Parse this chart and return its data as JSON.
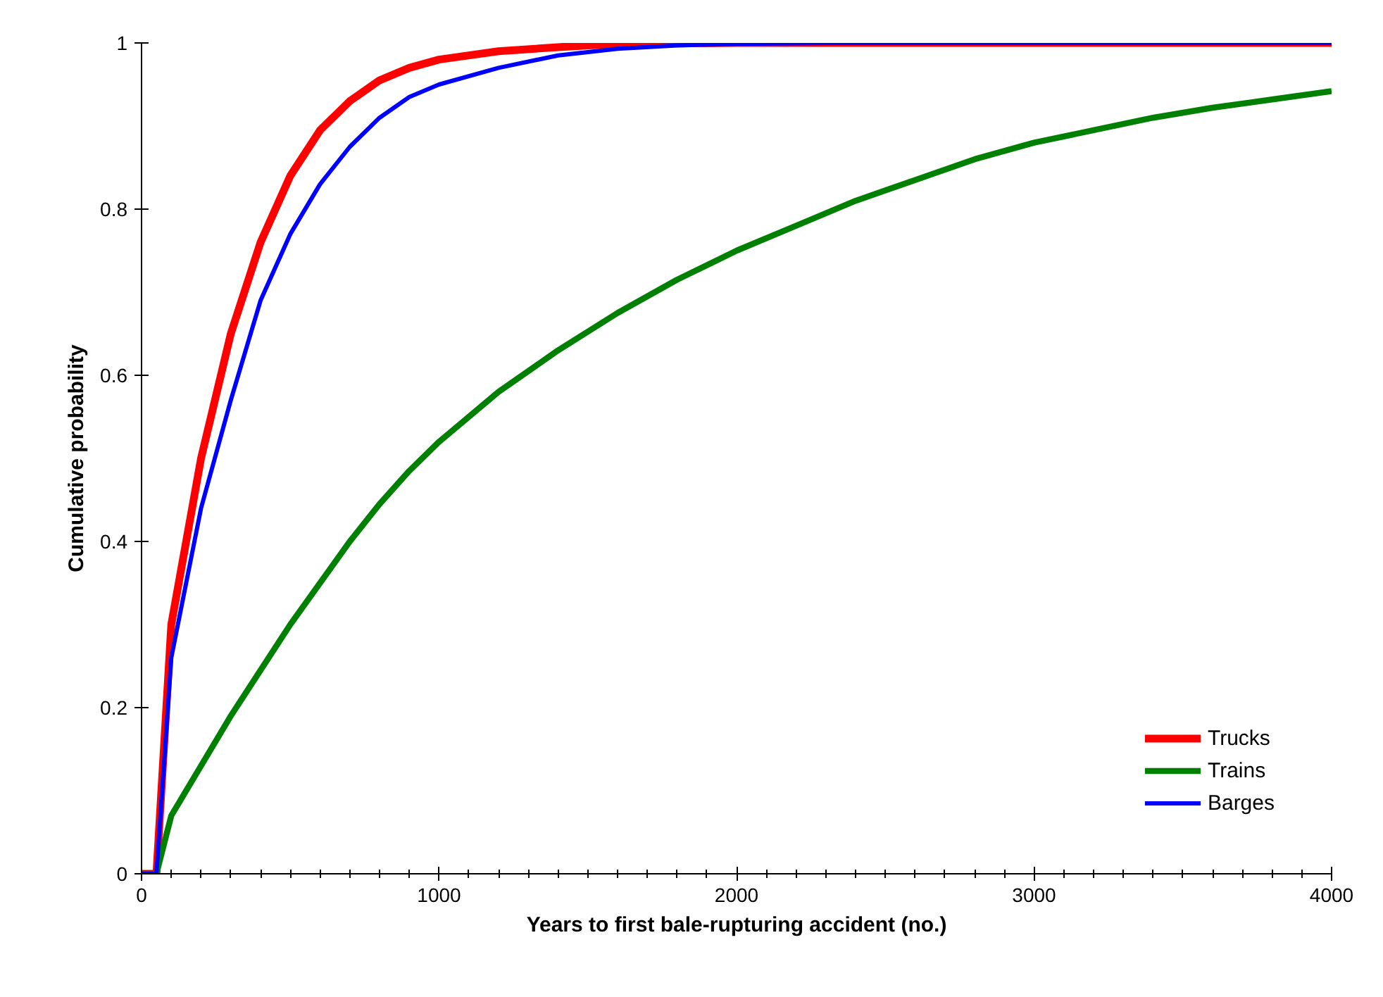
{
  "chart_data": {
    "type": "line",
    "xlabel": "Years to first bale-rupturing accident (no.)",
    "ylabel": "Cumulative probability",
    "xlim": [
      0,
      4000
    ],
    "xticks": [
      0,
      1000,
      2000,
      3000,
      4000
    ],
    "ylim": [
      0,
      1
    ],
    "yticks": [
      0,
      0.2,
      0.4,
      0.6,
      0.8,
      1
    ],
    "grid": false,
    "legend": "bottom right",
    "marker": "none",
    "line_style": "solid",
    "series": [
      {
        "name": "Trucks",
        "color": "#ff0000",
        "x": [
          0,
          50,
          100,
          200,
          300,
          400,
          500,
          600,
          700,
          800,
          900,
          1000,
          1200,
          1400,
          1600,
          2000,
          4000
        ],
        "values": [
          0,
          0,
          0.3,
          0.5,
          0.65,
          0.76,
          0.84,
          0.895,
          0.93,
          0.955,
          0.97,
          0.98,
          0.99,
          0.995,
          0.999,
          1,
          1
        ]
      },
      {
        "name": "Trains",
        "color": "#008000",
        "x": [
          0,
          50,
          100,
          200,
          300,
          400,
          500,
          600,
          700,
          800,
          900,
          1000,
          1200,
          1400,
          1600,
          1800,
          2000,
          2200,
          2400,
          2600,
          2800,
          3000,
          3200,
          3400,
          3600,
          3800,
          4000
        ],
        "values": [
          0,
          0,
          0.07,
          0.13,
          0.19,
          0.245,
          0.3,
          0.35,
          0.4,
          0.445,
          0.485,
          0.52,
          0.58,
          0.63,
          0.675,
          0.715,
          0.75,
          0.78,
          0.81,
          0.835,
          0.86,
          0.88,
          0.895,
          0.91,
          0.922,
          0.932,
          0.942
        ]
      },
      {
        "name": "Barges",
        "color": "#0000ff",
        "x": [
          0,
          50,
          100,
          200,
          300,
          400,
          500,
          600,
          700,
          800,
          900,
          1000,
          1200,
          1400,
          1600,
          1800,
          2000,
          2300,
          4000
        ],
        "values": [
          0,
          0,
          0.26,
          0.44,
          0.57,
          0.69,
          0.77,
          0.83,
          0.875,
          0.91,
          0.935,
          0.95,
          0.97,
          0.985,
          0.993,
          0.997,
          0.999,
          1,
          1
        ]
      }
    ]
  }
}
